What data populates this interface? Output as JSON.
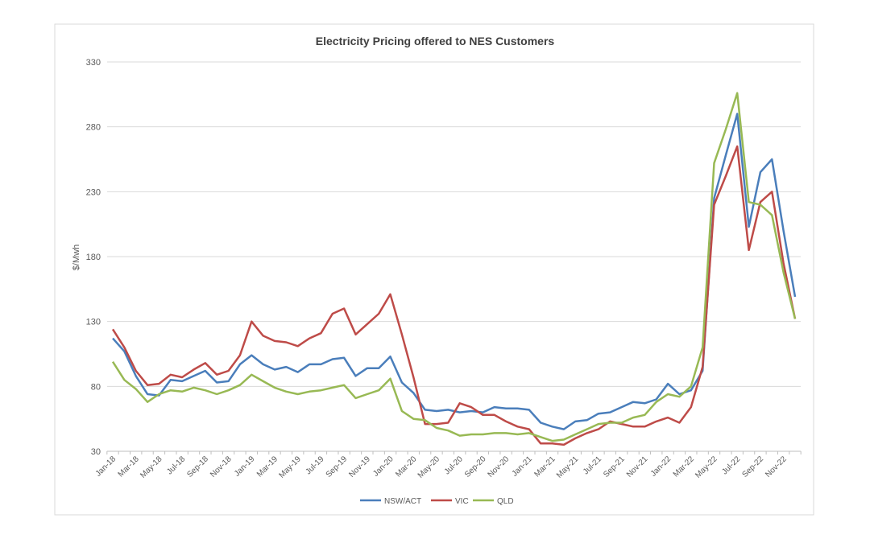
{
  "chart_data": {
    "type": "line",
    "title": "Electricity Pricing offered to NES Customers",
    "xlabel": "",
    "ylabel": "$/Mwh",
    "ylim": [
      30,
      330
    ],
    "yticks": [
      30,
      80,
      130,
      180,
      230,
      280,
      330
    ],
    "grid": true,
    "legend_position": "bottom",
    "x": [
      "Jan-18",
      "Feb-18",
      "Mar-18",
      "Apr-18",
      "May-18",
      "Jun-18",
      "Jul-18",
      "Aug-18",
      "Sep-18",
      "Oct-18",
      "Nov-18",
      "Dec-18",
      "Jan-19",
      "Feb-19",
      "Mar-19",
      "Apr-19",
      "May-19",
      "Jun-19",
      "Jul-19",
      "Aug-19",
      "Sep-19",
      "Oct-19",
      "Nov-19",
      "Dec-19",
      "Jan-20",
      "Feb-20",
      "Mar-20",
      "Apr-20",
      "May-20",
      "Jun-20",
      "Jul-20",
      "Aug-20",
      "Sep-20",
      "Oct-20",
      "Nov-20",
      "Dec-20",
      "Jan-21",
      "Feb-21",
      "Mar-21",
      "Apr-21",
      "May-21",
      "Jun-21",
      "Jul-21",
      "Aug-21",
      "Sep-21",
      "Oct-21",
      "Nov-21",
      "Dec-21",
      "Jan-22",
      "Feb-22",
      "Mar-22",
      "Apr-22",
      "May-22",
      "Jun-22",
      "Jul-22",
      "Aug-22",
      "Sep-22",
      "Oct-22",
      "Nov-22",
      "Dec-22"
    ],
    "series": [
      {
        "name": "NSW/ACT",
        "color": "#4a7ebb",
        "values": [
          117,
          107,
          88,
          74,
          73,
          85,
          84,
          88,
          92,
          83,
          84,
          97,
          104,
          97,
          93,
          95,
          91,
          97,
          97,
          101,
          102,
          88,
          94,
          94,
          103,
          83,
          75,
          62,
          61,
          62,
          60,
          61,
          60,
          64,
          63,
          63,
          62,
          52,
          49,
          47,
          53,
          54,
          59,
          60,
          64,
          68,
          67,
          70,
          82,
          74,
          77,
          92,
          225,
          258,
          290,
          203,
          245,
          255,
          200,
          149
        ]
      },
      {
        "name": "VIC",
        "color": "#be4b48",
        "values": [
          124,
          110,
          92,
          81,
          82,
          89,
          87,
          93,
          98,
          89,
          92,
          104,
          130,
          119,
          115,
          114,
          111,
          117,
          121,
          136,
          140,
          120,
          128,
          136,
          151,
          120,
          87,
          51,
          51,
          52,
          67,
          64,
          58,
          58,
          53,
          49,
          47,
          36,
          36,
          35,
          40,
          44,
          47,
          53,
          51,
          49,
          49,
          53,
          56,
          52,
          64,
          95,
          220,
          242,
          265,
          185,
          222,
          230,
          175,
          132
        ]
      },
      {
        "name": "QLD",
        "color": "#98b954",
        "values": [
          99,
          85,
          78,
          68,
          74,
          77,
          76,
          79,
          77,
          74,
          77,
          81,
          89,
          84,
          79,
          76,
          74,
          76,
          77,
          79,
          81,
          71,
          74,
          77,
          86,
          61,
          55,
          54,
          48,
          46,
          42,
          43,
          43,
          44,
          44,
          43,
          44,
          41,
          38,
          39,
          43,
          47,
          51,
          52,
          52,
          56,
          58,
          68,
          74,
          72,
          80,
          110,
          252,
          278,
          306,
          222,
          220,
          212,
          168,
          132
        ]
      }
    ]
  }
}
